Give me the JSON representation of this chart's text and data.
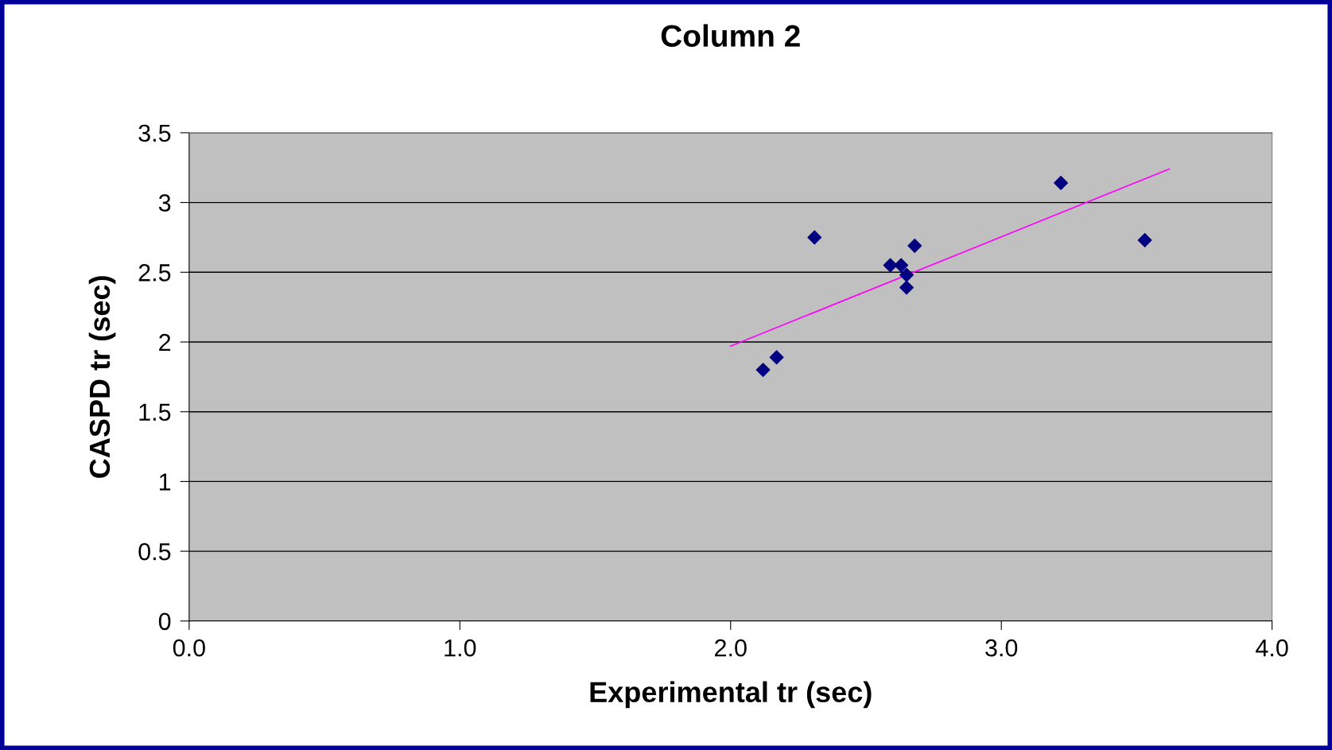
{
  "chart_data": {
    "type": "scatter",
    "title": "Column 2",
    "xlabel": "Experimental tr (sec)",
    "ylabel": "CASPD tr (sec)",
    "xlim": [
      0,
      4
    ],
    "xticks": [
      {
        "value": 0,
        "label": "0.0"
      },
      {
        "value": 1,
        "label": "1.0"
      },
      {
        "value": 2,
        "label": "2.0"
      },
      {
        "value": 3,
        "label": "3.0"
      },
      {
        "value": 4,
        "label": "4.0"
      }
    ],
    "ylim": [
      0,
      3.5
    ],
    "yticks": [
      0,
      0.5,
      1,
      1.5,
      2,
      2.5,
      3,
      3.5
    ],
    "grid": "y",
    "series": [
      {
        "marker": "diamond",
        "color": "#000080",
        "x": [
          2.12,
          2.17,
          2.31,
          2.59,
          2.63,
          2.65,
          2.65,
          2.68,
          3.22,
          3.53
        ],
        "values": [
          1.8,
          1.89,
          2.75,
          2.55,
          2.55,
          2.48,
          2.39,
          2.69,
          3.14,
          2.73
        ]
      },
      {
        "type": "line",
        "color": "#ff00ff",
        "x": [
          2.0,
          3.62
        ],
        "values": [
          1.97,
          3.24
        ]
      }
    ]
  }
}
